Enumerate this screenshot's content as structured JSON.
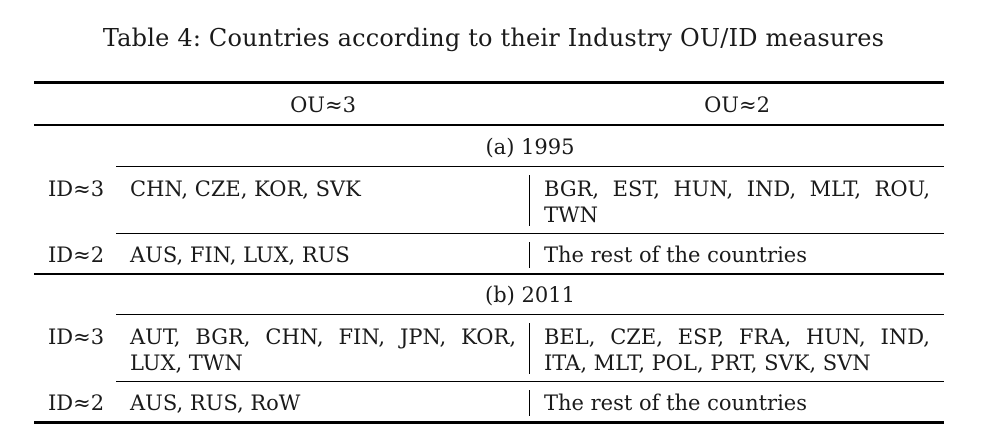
{
  "caption": "Table 4: Countries according to their Industry OU/ID measures",
  "columns": {
    "col1": "OU≈3",
    "col2": "OU≈2"
  },
  "panels": [
    {
      "title": "(a) 1995",
      "rows": [
        {
          "label": "ID≈3",
          "ou3": "CHN, CZE, KOR, SVK",
          "ou2_line1": "BGR, EST, HUN, IND, MLT, ROU,",
          "ou2_line2": "TWN"
        },
        {
          "label": "ID≈2",
          "ou3": "AUS, FIN, LUX, RUS",
          "ou2": "The rest of the countries"
        }
      ]
    },
    {
      "title": "(b) 2011",
      "rows": [
        {
          "label": "ID≈3",
          "ou3_line1": "AUT, BGR, CHN, FIN, JPN, KOR,",
          "ou3_line2": "LUX, TWN",
          "ou2_line1": "BEL, CZE, ESP, FRA, HUN, IND,",
          "ou2_line2": "ITA, MLT, POL, PRT, SVK, SVN"
        },
        {
          "label": "ID≈2",
          "ou3": "AUS, RUS, RoW",
          "ou2": "The rest of the countries"
        }
      ]
    }
  ]
}
